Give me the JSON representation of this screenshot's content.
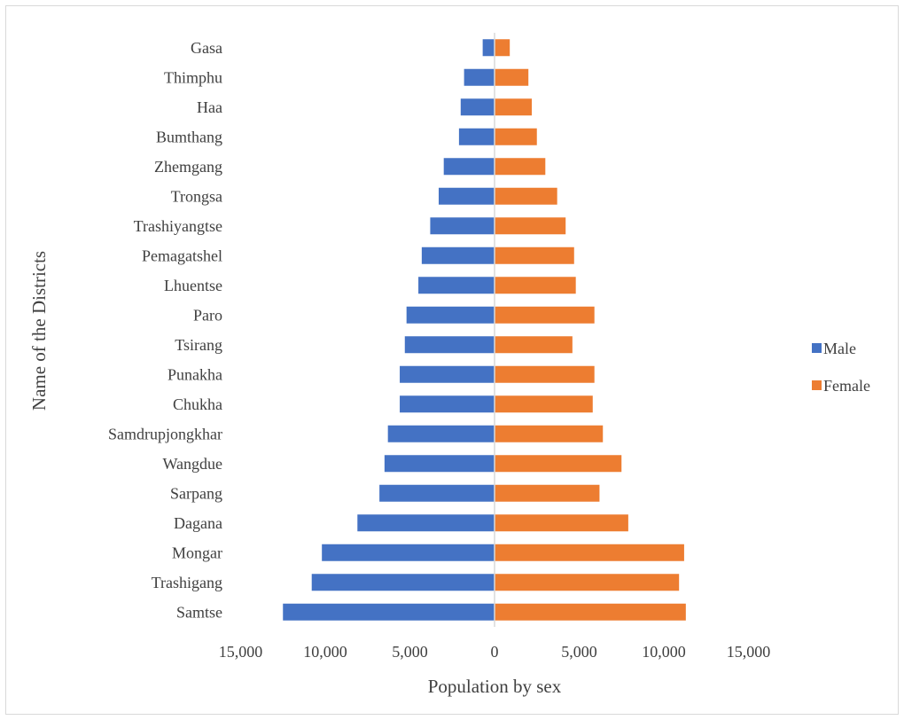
{
  "chart_data": {
    "type": "bar",
    "orientation": "horizontal",
    "title": "",
    "xlabel": "Population by sex",
    "ylabel": "Name of the Districts",
    "xlim": [
      -15000,
      15000
    ],
    "x_ticks": [
      -15000,
      -10000,
      -5000,
      0,
      5000,
      10000,
      15000
    ],
    "x_tick_labels": [
      "15,000",
      "10,000",
      "5,000",
      "0",
      "5,000",
      "10,000",
      "15,000"
    ],
    "grid": false,
    "legend_position": "right",
    "categories": [
      "Gasa",
      "Thimphu",
      "Haa",
      "Bumthang",
      "Zhemgang",
      "Trongsa",
      "Trashiyangtse",
      "Pemagatshel",
      "Lhuentse",
      "Paro",
      "Tsirang",
      "Punakha",
      "Chukha",
      "Samdrupjongkhar",
      "Wangdue",
      "Sarpang",
      "Dagana",
      "Mongar",
      "Trashigang",
      "Samtse"
    ],
    "series": [
      {
        "name": "Male",
        "color": "#4472c4",
        "values": [
          700,
          1800,
          2000,
          2100,
          3000,
          3300,
          3800,
          4300,
          4500,
          5200,
          5300,
          5600,
          5600,
          6300,
          6500,
          6800,
          8100,
          10200,
          10800,
          12500
        ]
      },
      {
        "name": "Female",
        "color": "#ed7d31",
        "values": [
          900,
          2000,
          2200,
          2500,
          3000,
          3700,
          4200,
          4700,
          4800,
          5900,
          4600,
          5900,
          5800,
          6400,
          7500,
          6200,
          7900,
          11200,
          10900,
          11300
        ]
      }
    ]
  }
}
